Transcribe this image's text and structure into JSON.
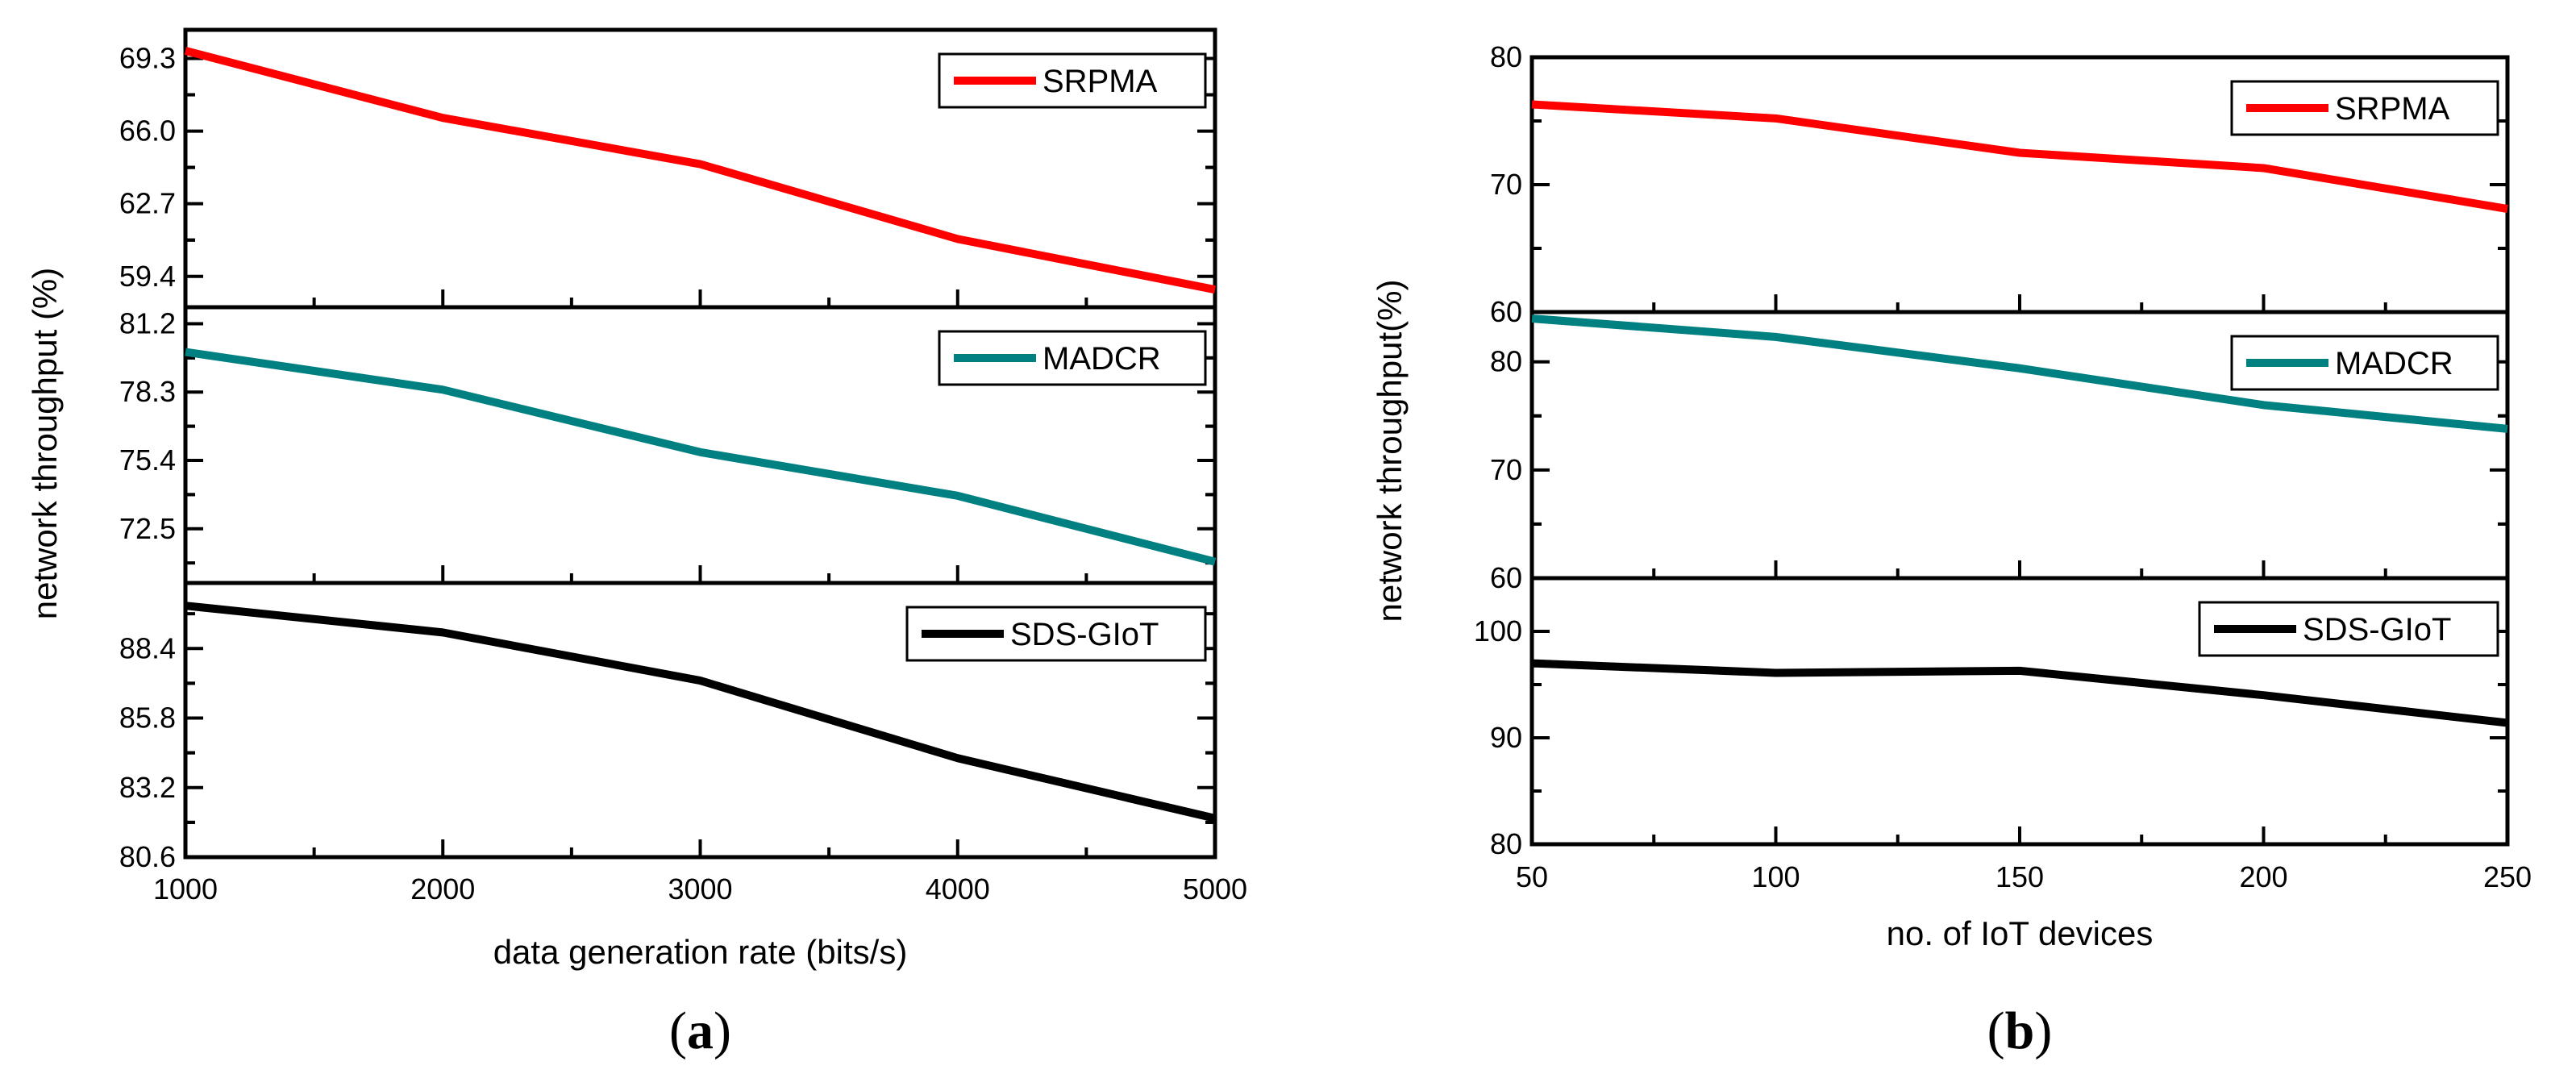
{
  "chart_data": [
    {
      "type": "line",
      "panel_label": {
        "open": "(",
        "letter": "a",
        "close": ")"
      },
      "xlabel": "data generation rate (bits/s)",
      "ylabel": "network throughput (%)",
      "x": [
        1000,
        2000,
        3000,
        4000,
        5000
      ],
      "xlim": [
        1000,
        5000
      ],
      "xticks": [
        1000,
        2000,
        3000,
        4000,
        5000
      ],
      "xtick_labels": [
        "1000",
        "2000",
        "3000",
        "4000",
        "5000"
      ],
      "subplots": [
        {
          "name": "SRPMA",
          "color": "#ff0000",
          "ylim": [
            58.0,
            70.6
          ],
          "yticks": [
            69.3,
            66.0,
            62.7,
            59.4
          ],
          "ytick_labels": [
            "69.3",
            "66.0",
            "62.7",
            "59.4"
          ],
          "values": [
            69.65,
            66.6,
            64.5,
            61.1,
            58.8
          ],
          "legend": "top-right"
        },
        {
          "name": "MADCR",
          "color": "#008080",
          "ylim": [
            70.2,
            81.9
          ],
          "yticks": [
            81.2,
            78.3,
            75.4,
            72.5
          ],
          "ytick_labels": [
            "81.2",
            "78.3",
            "75.4",
            "72.5"
          ],
          "values": [
            80.0,
            78.4,
            75.75,
            73.9,
            71.1
          ],
          "legend": "top-right"
        },
        {
          "name": "SDS-GIoT",
          "color": "#000000",
          "ylim": [
            80.6,
            90.85
          ],
          "yticks": [
            88.4,
            85.8,
            83.2,
            80.6
          ],
          "ytick_labels": [
            "88.4",
            "85.8",
            "83.2",
            "80.6"
          ],
          "values": [
            90.0,
            89.0,
            87.2,
            84.3,
            82.05
          ],
          "legend": "top-right"
        }
      ]
    },
    {
      "type": "line",
      "panel_label": {
        "open": "(",
        "letter": "b",
        "close": ")"
      },
      "xlabel": "no. of IoT devices",
      "ylabel": "network throughput(%)",
      "x": [
        50,
        100,
        150,
        200,
        250
      ],
      "xlim": [
        50,
        250
      ],
      "xticks": [
        50,
        100,
        150,
        200,
        250
      ],
      "xtick_labels": [
        "50",
        "100",
        "150",
        "200",
        "250"
      ],
      "subplots": [
        {
          "name": "SRPMA",
          "color": "#ff0000",
          "ylim": [
            60,
            80
          ],
          "yticks": [
            80,
            70,
            60
          ],
          "ytick_labels": [
            "80",
            "70",
            "60"
          ],
          "values": [
            76.3,
            75.2,
            72.5,
            71.3,
            68.1
          ],
          "legend": "top-right"
        },
        {
          "name": "MADCR",
          "color": "#008080",
          "ylim": [
            60,
            84.6
          ],
          "yticks": [
            80,
            70,
            60
          ],
          "ytick_labels": [
            "80",
            "70",
            "60"
          ],
          "values": [
            84.0,
            82.3,
            79.4,
            76.0,
            73.8
          ],
          "legend": "top-right"
        },
        {
          "name": "SDS-GIoT",
          "color": "#000000",
          "ylim": [
            80,
            105
          ],
          "yticks": [
            100,
            90,
            80
          ],
          "ytick_labels": [
            "100",
            "90",
            "80"
          ],
          "values": [
            97.0,
            96.1,
            96.3,
            94.0,
            91.4
          ],
          "legend": "top-right"
        }
      ]
    }
  ]
}
